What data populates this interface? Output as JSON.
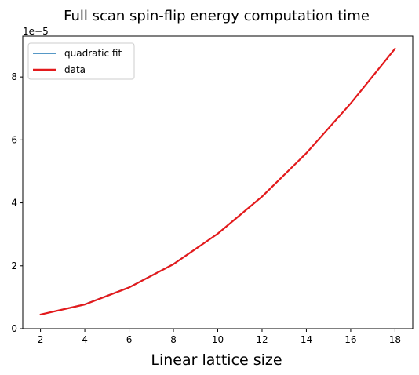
{
  "chart_data": {
    "type": "line",
    "title": "Full scan spin-flip energy computation time",
    "xlabel": "Linear lattice size",
    "ylabel": "",
    "y_offset_label": "1e−5",
    "xlim": [
      1.2,
      18.8
    ],
    "ylim": [
      0,
      9.3
    ],
    "xticks": [
      2,
      4,
      6,
      8,
      10,
      12,
      14,
      16,
      18
    ],
    "xtick_labels": [
      "2",
      "4",
      "6",
      "8",
      "10",
      "12",
      "14",
      "16",
      "18"
    ],
    "yticks": [
      0,
      2,
      4,
      6,
      8
    ],
    "ytick_labels": [
      "0",
      "2",
      "4",
      "6",
      "8"
    ],
    "grid": false,
    "legend_position": "top-left",
    "x": [
      2,
      4,
      6,
      8,
      10,
      12,
      14,
      16,
      18
    ],
    "series": [
      {
        "name": "quadratic fit",
        "color": "#1f77b4",
        "values": [
          0.45,
          0.78,
          1.32,
          2.06,
          3.02,
          4.2,
          5.58,
          7.16,
          8.9
        ]
      },
      {
        "name": "data",
        "color": "#e31a1c",
        "values": [
          0.45,
          0.77,
          1.31,
          2.05,
          3.02,
          4.2,
          5.58,
          7.16,
          8.9
        ]
      }
    ]
  }
}
